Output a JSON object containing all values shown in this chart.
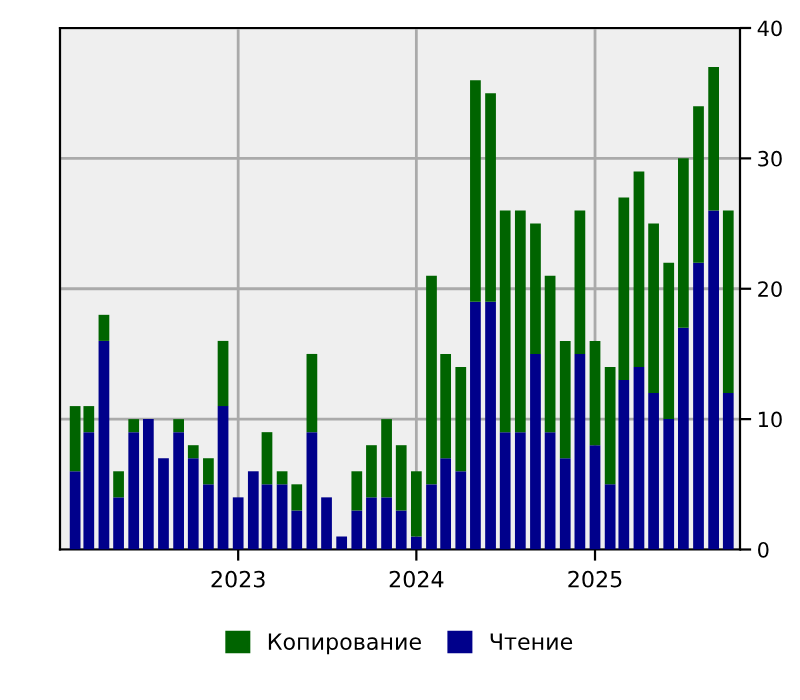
{
  "chart_data": {
    "type": "bar",
    "stacked": true,
    "x": [
      "2022-02",
      "2022-03",
      "2022-04",
      "2022-05",
      "2022-06",
      "2022-07",
      "2022-08",
      "2022-09",
      "2022-10",
      "2022-11",
      "2022-12",
      "2023-01",
      "2023-02",
      "2023-03",
      "2023-04",
      "2023-05",
      "2023-06",
      "2023-07",
      "2023-08",
      "2023-09",
      "2023-10",
      "2023-11",
      "2023-12",
      "2024-01",
      "2024-02",
      "2024-03",
      "2024-04",
      "2024-05",
      "2024-06",
      "2024-07",
      "2024-08",
      "2024-09",
      "2024-10",
      "2024-11",
      "2024-12",
      "2025-01",
      "2025-02",
      "2025-03",
      "2025-04",
      "2025-05",
      "2025-06",
      "2025-07",
      "2025-08",
      "2025-09",
      "2025-10"
    ],
    "series": [
      {
        "name": "Чтение",
        "color": "#00008b",
        "values": [
          6,
          9,
          16,
          4,
          9,
          10,
          7,
          9,
          7,
          5,
          11,
          4,
          6,
          5,
          5,
          3,
          9,
          4,
          1,
          3,
          4,
          4,
          3,
          1,
          5,
          7,
          6,
          19,
          19,
          9,
          9,
          15,
          9,
          7,
          15,
          8,
          5,
          13,
          14,
          12,
          10,
          17,
          22,
          26,
          12
        ]
      },
      {
        "name": "Копирование",
        "color": "#006400",
        "values": [
          5,
          2,
          2,
          2,
          1,
          0,
          0,
          1,
          1,
          2,
          5,
          0,
          0,
          4,
          1,
          2,
          6,
          0,
          0,
          3,
          4,
          6,
          5,
          5,
          16,
          8,
          8,
          17,
          16,
          17,
          17,
          10,
          12,
          9,
          11,
          8,
          9,
          14,
          15,
          13,
          12,
          13,
          12,
          11,
          14
        ]
      }
    ],
    "xlim": [
      "2022-01-01",
      "2025-10-25"
    ],
    "xticks": [
      {
        "value": "2023-01-01",
        "label": "2023"
      },
      {
        "value": "2024-01-01",
        "label": "2024"
      },
      {
        "value": "2025-01-01",
        "label": "2025"
      }
    ],
    "ylim": [
      0,
      40
    ],
    "yticks": [
      0,
      10,
      20,
      30,
      40
    ],
    "grid": true,
    "legend": "bottom"
  }
}
